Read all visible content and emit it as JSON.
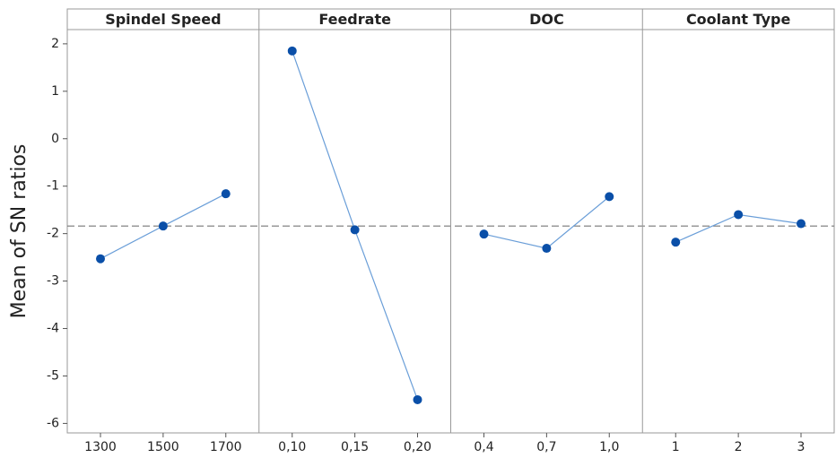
{
  "chart_data": {
    "type": "line",
    "ylabel": "Mean of SN ratios",
    "ylim": [
      -6.2,
      2.3
    ],
    "yticks": [
      -6,
      -5,
      -4,
      -3,
      -2,
      -1,
      0,
      1,
      2
    ],
    "reference_line": -1.84,
    "color": "#0a4fa8",
    "line_color": "#6a9ed8",
    "panels": [
      {
        "title": "Spindel Speed",
        "categories": [
          "1300",
          "1500",
          "1700"
        ],
        "values": [
          -2.53,
          -1.84,
          -1.16
        ]
      },
      {
        "title": "Feedrate",
        "categories": [
          "0,10",
          "0,15",
          "0,20"
        ],
        "values": [
          1.85,
          -1.92,
          -5.5
        ]
      },
      {
        "title": "DOC",
        "categories": [
          "0,4",
          "0,7",
          "1,0"
        ],
        "values": [
          -2.01,
          -2.31,
          -1.22
        ]
      },
      {
        "title": "Coolant Type",
        "categories": [
          "1",
          "2",
          "3"
        ],
        "values": [
          -2.18,
          -1.6,
          -1.79
        ]
      }
    ]
  }
}
